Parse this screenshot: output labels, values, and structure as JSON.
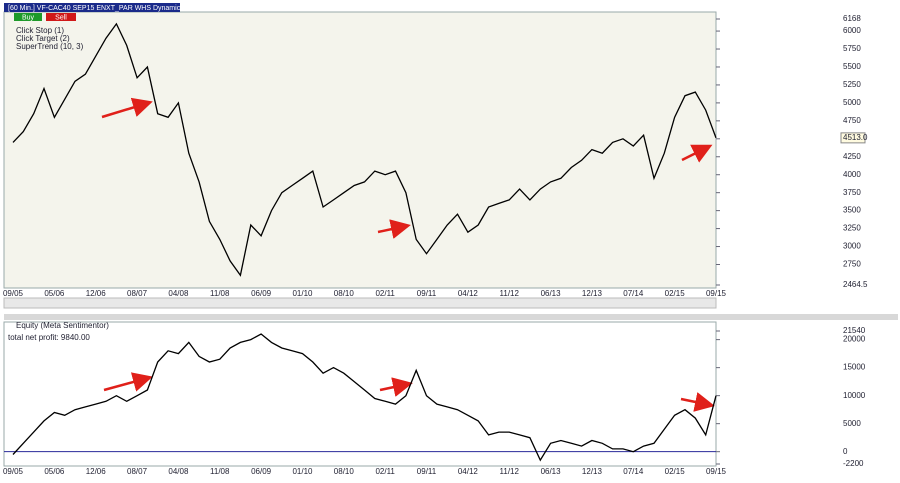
{
  "window": {
    "header": "[60 Min.] VF-CAC40 SEP15    ENXT_PAR WHS Dynamic RSI",
    "buy": "Buy",
    "sell": "Sell"
  },
  "chart_data": [
    {
      "type": "line",
      "indicators": [
        "Click Stop  (1)",
        "Click Target  (2)",
        "SuperTrend  (10, 3)"
      ],
      "categories": [
        "09/05",
        null,
        null,
        null,
        "05/06",
        null,
        null,
        null,
        "12/06",
        null,
        null,
        null,
        "08/07",
        null,
        null,
        null,
        "04/08",
        null,
        null,
        null,
        "11/08",
        null,
        null,
        null,
        "06/09",
        null,
        null,
        null,
        "01/10",
        null,
        null,
        null,
        "08/10",
        null,
        null,
        null,
        "02/11",
        null,
        null,
        null,
        "09/11",
        null,
        null,
        null,
        "04/12",
        null,
        null,
        null,
        "11/12",
        null,
        null,
        null,
        "06/13",
        null,
        null,
        null,
        "12/13",
        null,
        null,
        null,
        "07/14",
        null,
        null,
        null,
        "02/15",
        null,
        null,
        null,
        "09/15"
      ],
      "series": [
        {
          "name": "VF-CAC40 SEP15",
          "color": "#000000",
          "values": [
            4450,
            4600,
            4850,
            5200,
            4800,
            5050,
            5300,
            5400,
            5650,
            5900,
            6100,
            5800,
            5350,
            5500,
            4850,
            4800,
            5000,
            4300,
            3900,
            3350,
            3100,
            2800,
            2600,
            3300,
            3150,
            3500,
            3750,
            3850,
            3950,
            4050,
            3550,
            3650,
            3750,
            3850,
            3900,
            4050,
            4000,
            4050,
            3750,
            3100,
            2900,
            3100,
            3300,
            3450,
            3200,
            3300,
            3550,
            3600,
            3650,
            3800,
            3650,
            3800,
            3900,
            3950,
            4100,
            4200,
            4350,
            4300,
            4450,
            4500,
            4400,
            4550,
            3950,
            4300,
            4800,
            5100,
            5150,
            4900,
            4513
          ]
        }
      ],
      "last_price": {
        "value": 4513,
        "label": "4513.0"
      },
      "ylim": [
        2464.5,
        6168
      ],
      "yticks": [
        6168,
        6000,
        5750,
        5500,
        5250,
        5000,
        4750,
        4500,
        4250,
        4000,
        3750,
        3500,
        3250,
        3000,
        2750,
        2464.5
      ],
      "grid": false
    },
    {
      "type": "line",
      "title": "Equity (Meta Sentimentor)",
      "annotation": "total net profit: 9840.00",
      "categories": [
        "09/05",
        null,
        null,
        null,
        "05/06",
        null,
        null,
        null,
        "12/06",
        null,
        null,
        null,
        "08/07",
        null,
        null,
        null,
        "04/08",
        null,
        null,
        null,
        "11/08",
        null,
        null,
        null,
        "06/09",
        null,
        null,
        null,
        "01/10",
        null,
        null,
        null,
        "08/10",
        null,
        null,
        null,
        "02/11",
        null,
        null,
        null,
        "09/11",
        null,
        null,
        null,
        "04/12",
        null,
        null,
        null,
        "11/12",
        null,
        null,
        null,
        "06/13",
        null,
        null,
        null,
        "12/13",
        null,
        null,
        null,
        "07/14",
        null,
        null,
        null,
        "02/15",
        null,
        null,
        null,
        "09/15"
      ],
      "series": [
        {
          "name": "Equity",
          "color": "#000000",
          "values": [
            -500,
            1500,
            3500,
            5500,
            7000,
            6500,
            7500,
            8000,
            8500,
            9000,
            10000,
            9000,
            10000,
            11000,
            16000,
            18000,
            17500,
            19500,
            17000,
            16000,
            16500,
            18500,
            19500,
            20000,
            21000,
            19500,
            18500,
            18000,
            17500,
            16000,
            14000,
            15000,
            14000,
            12500,
            11000,
            9500,
            9000,
            8500,
            10000,
            14500,
            10000,
            8500,
            8000,
            7500,
            6500,
            5500,
            3000,
            3500,
            3500,
            3000,
            2500,
            -1500,
            1500,
            2000,
            1500,
            1000,
            2000,
            1500,
            500,
            500,
            0,
            1000,
            1500,
            4000,
            6500,
            7500,
            6000,
            3000,
            10000
          ]
        }
      ],
      "ylim": [
        -2200,
        21540
      ],
      "yticks": [
        21540,
        20000,
        15000,
        10000,
        5000,
        0,
        -2200
      ],
      "grid": false
    }
  ]
}
